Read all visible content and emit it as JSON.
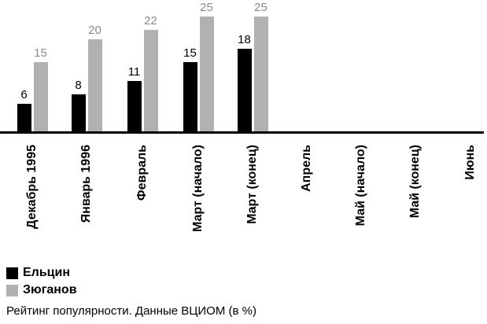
{
  "chart_data": {
    "type": "bar",
    "categories": [
      "Декабрь 1995",
      "Январь 1996",
      "Февраль",
      "Март (начало)",
      "Март (конец)",
      "Апрель",
      "Май (начало)",
      "Май (конец)",
      "Июнь"
    ],
    "series": [
      {
        "key": "yeltsin",
        "name": "Ельцин",
        "color": "#000000",
        "value_label_color": "#000000",
        "values": [
          6,
          8,
          11,
          15,
          18,
          null,
          null,
          null,
          null
        ]
      },
      {
        "key": "zyuganov",
        "name": "Зюганов",
        "color": "#b1b1b1",
        "value_label_color": "#8a8a8a",
        "values": [
          15,
          20,
          22,
          25,
          25,
          null,
          null,
          null,
          null
        ]
      }
    ],
    "title": "",
    "xlabel": "",
    "ylabel": "",
    "ylim": [
      0,
      27
    ],
    "grid": false,
    "axis_line_color": "#000000",
    "legend_position": "bottom-left",
    "caption": "Рейтинг популярности. Данные ВЦИОМ (в %)"
  }
}
